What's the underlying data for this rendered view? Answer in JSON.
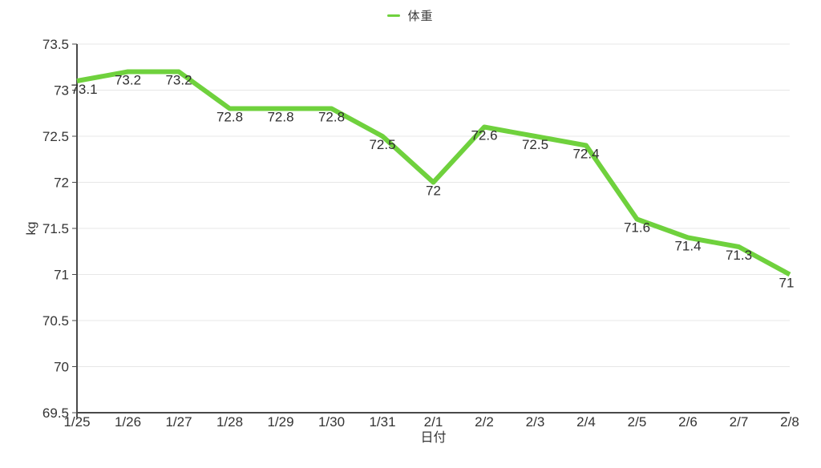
{
  "legend": {
    "series_label": "体重"
  },
  "chart_data": {
    "type": "line",
    "x": [
      "1/25",
      "1/26",
      "1/27",
      "1/28",
      "1/29",
      "1/30",
      "1/31",
      "2/1",
      "2/2",
      "2/3",
      "2/4",
      "2/5",
      "2/6",
      "2/7",
      "2/8"
    ],
    "series": [
      {
        "name": "体重",
        "values": [
          73.1,
          73.2,
          73.2,
          72.8,
          72.8,
          72.8,
          72.5,
          72,
          72.6,
          72.5,
          72.4,
          71.6,
          71.4,
          71.3,
          71
        ]
      }
    ],
    "title": "",
    "xlabel": "日付",
    "ylabel": "kg",
    "ylim": [
      69.5,
      73.5
    ],
    "ytick_step": 0.5,
    "ytick_labels": [
      "69.5",
      "70",
      "70.5",
      "71",
      "71.5",
      "72",
      "72.5",
      "73",
      "73.5"
    ],
    "grid": "horizontal-only",
    "legend_position": "top-center",
    "data_labels_visible": true
  },
  "colors": {
    "line": "#6fd13d",
    "grid": "#e7e7e7",
    "axis": "#4a4a4a",
    "tick_text": "#333333",
    "data_label_text": "#2f2f2f",
    "background": "#ffffff"
  }
}
